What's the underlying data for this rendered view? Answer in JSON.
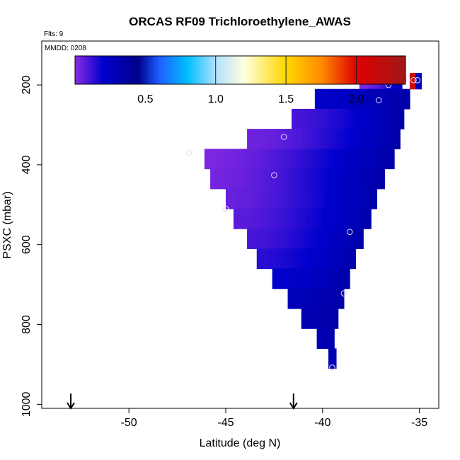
{
  "chart_data": {
    "type": "heatmap",
    "title": "ORCAS RF09 Trichloroethylene_AWAS",
    "flts_label": "Flts: 9",
    "mmdd_label": "MMDD: 0208",
    "xlabel": "Latitude (deg N)",
    "ylabel": "PSXC (mbar)",
    "xlim": [
      -54.5,
      -34.0
    ],
    "ylim": [
      1010,
      90
    ],
    "x_ticks": [
      -50,
      -45,
      -40,
      -35
    ],
    "x_tick_labels": [
      "-50",
      "-45",
      "-40",
      "-35"
    ],
    "y_ticks": [
      200,
      400,
      600,
      800,
      1000
    ],
    "y_tick_labels": [
      "200",
      "400",
      "600",
      "800",
      "1000"
    ],
    "colorbar": {
      "range": [
        0.0,
        2.35
      ],
      "ticks": [
        0.5,
        1.0,
        1.5,
        2.0
      ],
      "tick_labels": [
        "0.5",
        "1.0",
        "1.5",
        "2.0"
      ],
      "stops": [
        {
          "v": 0.0,
          "color": "#8a2be2"
        },
        {
          "v": 0.2,
          "color": "#0000cd"
        },
        {
          "v": 0.45,
          "color": "#00008b"
        },
        {
          "v": 0.6,
          "color": "#1e5fff"
        },
        {
          "v": 0.8,
          "color": "#00bfff"
        },
        {
          "v": 1.0,
          "color": "#b0e0ff"
        },
        {
          "v": 1.2,
          "color": "#ffffe0"
        },
        {
          "v": 1.5,
          "color": "#ffd700"
        },
        {
          "v": 1.75,
          "color": "#ff8c00"
        },
        {
          "v": 2.0,
          "color": "#e00000"
        },
        {
          "v": 2.35,
          "color": "#a01818"
        }
      ]
    },
    "rows": [
      {
        "p0": 170,
        "p1": 210,
        "lat0": -38.1,
        "lat1": -35.9,
        "v0": 0.02,
        "v1": 0.26
      },
      {
        "p0": 170,
        "p1": 210,
        "lat0": -35.5,
        "lat1": -35.2,
        "v0": 2.1,
        "v1": 2.2
      },
      {
        "p0": 170,
        "p1": 210,
        "lat0": -35.2,
        "lat1": -34.9,
        "v0": 0.3,
        "v1": 0.3
      },
      {
        "p0": 210,
        "p1": 260,
        "lat0": -40.4,
        "lat1": -35.5,
        "v0": 0.22,
        "v1": 0.34
      },
      {
        "p0": 260,
        "p1": 310,
        "lat0": -41.6,
        "lat1": -35.8,
        "v0": 0.1,
        "v1": 0.34
      },
      {
        "p0": 310,
        "p1": 360,
        "lat0": -43.9,
        "lat1": -36.0,
        "v0": 0.04,
        "v1": 0.34
      },
      {
        "p0": 360,
        "p1": 410,
        "lat0": -46.1,
        "lat1": -36.3,
        "v0": 0.02,
        "v1": 0.34
      },
      {
        "p0": 410,
        "p1": 460,
        "lat0": -45.8,
        "lat1": -36.8,
        "v0": 0.03,
        "v1": 0.34
      },
      {
        "p0": 460,
        "p1": 510,
        "lat0": -45.0,
        "lat1": -37.2,
        "v0": 0.05,
        "v1": 0.32
      },
      {
        "p0": 510,
        "p1": 560,
        "lat0": -44.6,
        "lat1": -37.5,
        "v0": 0.07,
        "v1": 0.32
      },
      {
        "p0": 560,
        "p1": 610,
        "lat0": -43.9,
        "lat1": -37.9,
        "v0": 0.1,
        "v1": 0.32
      },
      {
        "p0": 610,
        "p1": 660,
        "lat0": -43.4,
        "lat1": -38.3,
        "v0": 0.14,
        "v1": 0.32
      },
      {
        "p0": 660,
        "p1": 710,
        "lat0": -42.6,
        "lat1": -38.6,
        "v0": 0.2,
        "v1": 0.34
      },
      {
        "p0": 710,
        "p1": 760,
        "lat0": -41.8,
        "lat1": -38.9,
        "v0": 0.28,
        "v1": 0.34
      },
      {
        "p0": 760,
        "p1": 810,
        "lat0": -41.1,
        "lat1": -39.2,
        "v0": 0.3,
        "v1": 0.34
      },
      {
        "p0": 810,
        "p1": 860,
        "lat0": -40.3,
        "lat1": -39.4,
        "v0": 0.3,
        "v1": 0.32
      },
      {
        "p0": 860,
        "p1": 910,
        "lat0": -39.7,
        "lat1": -39.3,
        "v0": 0.3,
        "v1": 0.3
      }
    ],
    "samples": [
      {
        "lat": -38.0,
        "p": 188
      },
      {
        "lat": -37.7,
        "p": 188
      },
      {
        "lat": -36.6,
        "p": 200
      },
      {
        "lat": -35.8,
        "p": 188
      },
      {
        "lat": -35.3,
        "p": 188
      },
      {
        "lat": -35.1,
        "p": 188
      },
      {
        "lat": -37.1,
        "p": 238
      },
      {
        "lat": -42.0,
        "p": 330
      },
      {
        "lat": -46.9,
        "p": 370
      },
      {
        "lat": -42.5,
        "p": 426
      },
      {
        "lat": -45.0,
        "p": 510
      },
      {
        "lat": -38.6,
        "p": 568
      },
      {
        "lat": -38.9,
        "p": 722
      },
      {
        "lat": -39.5,
        "p": 908
      }
    ],
    "arrows": [
      {
        "lat": -53.0
      },
      {
        "lat": -41.5
      }
    ]
  }
}
